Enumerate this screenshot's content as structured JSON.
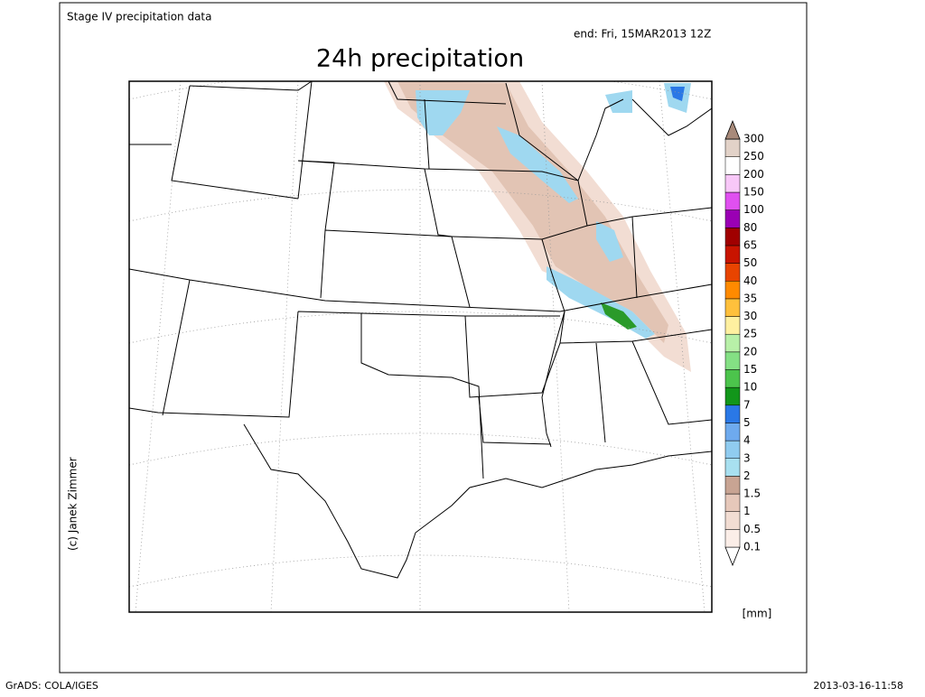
{
  "header": {
    "source": "Stage IV precipitation data",
    "valid": "end: Fri, 15MAR2013 12Z",
    "title": "24h precipitation"
  },
  "credit": "(c) Janek Zimmer",
  "colorbar": {
    "labels": [
      0.1,
      0.5,
      1,
      1.5,
      2,
      3,
      4,
      5,
      7,
      10,
      15,
      20,
      25,
      30,
      35,
      40,
      50,
      65,
      80,
      100,
      150,
      200,
      250,
      300
    ],
    "colors": [
      "#ffffff",
      "#fbeee8",
      "#f2ddd3",
      "#e6c8ba",
      "#c8a493",
      "#a8e0f0",
      "#90ccf0",
      "#6eaaee",
      "#2a78e6",
      "#12961a",
      "#4cc44c",
      "#84e084",
      "#b8f0a8",
      "#fff0a0",
      "#ffc03c",
      "#ff8a00",
      "#e84400",
      "#c81400",
      "#a00000",
      "#9a00b4",
      "#e050f0",
      "#f8c8f8",
      "#ffffff",
      "#e2d2c8",
      "#a88a7a"
    ],
    "unit": "[mm]"
  },
  "footer": {
    "left": "GrADS: COLA/IGES",
    "right": "2013-03-16-11:58"
  }
}
